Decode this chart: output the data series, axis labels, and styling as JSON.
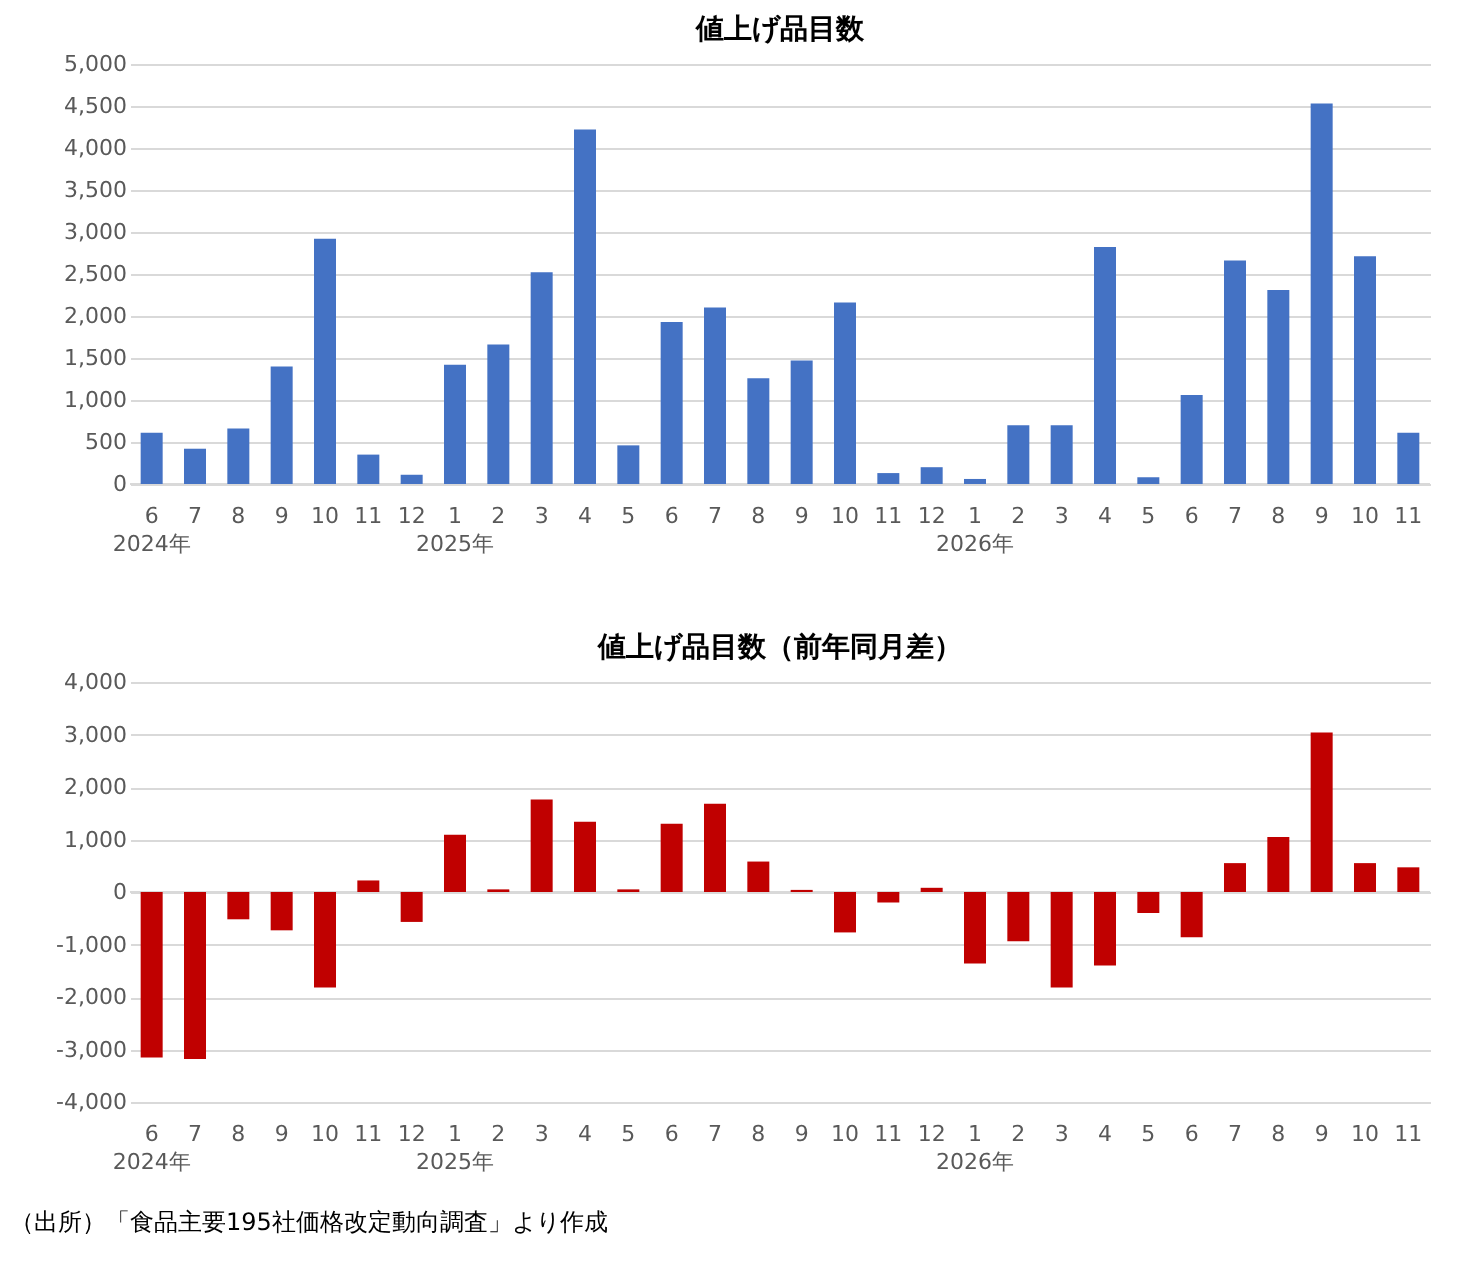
{
  "chart_data": [
    {
      "type": "bar",
      "title": "値上げ品目数",
      "categories": [
        "6\n2024年",
        "7",
        "8",
        "9",
        "10",
        "11",
        "12",
        "1\n2025年",
        "2",
        "3",
        "4",
        "5",
        "6",
        "7",
        "8",
        "9",
        "10",
        "11",
        "12",
        "1\n2026年",
        "2",
        "3",
        "4",
        "5",
        "6",
        "7",
        "8",
        "9",
        "10",
        "11"
      ],
      "values": [
        610,
        420,
        660,
        1400,
        2920,
        350,
        110,
        1420,
        1660,
        2520,
        4220,
        460,
        1930,
        2100,
        1260,
        1470,
        2160,
        130,
        200,
        60,
        700,
        700,
        2820,
        80,
        1060,
        2660,
        2310,
        4530,
        2710,
        610
      ],
      "color": "#4472c4",
      "ylim": [
        0,
        5000
      ],
      "yticks": [
        0,
        500,
        {
          "value": 1000,
          "label": "1,000"
        },
        {
          "value": 1500,
          "label": "1,500"
        },
        {
          "value": 2000,
          "label": "2,000"
        },
        {
          "value": 2500,
          "label": "2,500"
        },
        {
          "value": 3000,
          "label": "3,000"
        },
        {
          "value": 3500,
          "label": "3,500"
        },
        {
          "value": 4000,
          "label": "4,000"
        },
        {
          "value": 4500,
          "label": "4,500"
        },
        {
          "value": 5000,
          "label": "5,000"
        }
      ],
      "grid": "y"
    },
    {
      "type": "bar",
      "title": "値上げ品目数（前年同月差）",
      "categories": [
        "6\n2024年",
        "7",
        "8",
        "9",
        "10",
        "11",
        "12",
        "1\n2025年",
        "2",
        "3",
        "4",
        "5",
        "6",
        "7",
        "8",
        "9",
        "10",
        "11",
        "12",
        "1\n2026年",
        "2",
        "3",
        "4",
        "5",
        "6",
        "7",
        "8",
        "9",
        "10",
        "11"
      ],
      "values": [
        -3150,
        -3180,
        -520,
        -730,
        -1820,
        220,
        -570,
        1090,
        50,
        1760,
        1340,
        50,
        1300,
        1680,
        580,
        40,
        -770,
        -200,
        80,
        -1360,
        -940,
        -1820,
        -1400,
        -400,
        -860,
        550,
        1050,
        3040,
        550,
        470
      ],
      "color": "#c00000",
      "ylim": [
        -4000,
        4000
      ],
      "yticks": [
        {
          "value": -4000,
          "label": "-4,000"
        },
        {
          "value": -3000,
          "label": "-3,000"
        },
        {
          "value": -2000,
          "label": "-2,000"
        },
        {
          "value": -1000,
          "label": "-1,000"
        },
        0,
        {
          "value": 1000,
          "label": "1,000"
        },
        {
          "value": 2000,
          "label": "2,000"
        },
        {
          "value": 3000,
          "label": "3,000"
        },
        {
          "value": 4000,
          "label": "4,000"
        }
      ],
      "grid": "y",
      "annotations": [
        "（出所）「食品主要195社価格改定動向調査」より作成"
      ]
    }
  ]
}
